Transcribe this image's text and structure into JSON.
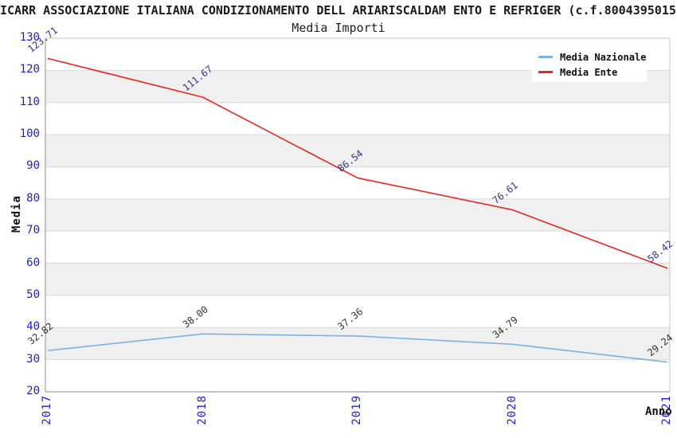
{
  "header": {
    "title": "ICARR ASSOCIAZIONE ITALIANA CONDIZIONAMENTO DELL ARIARISCALDAM ENTO E REFRIGER (c.f.80043950155",
    "subtitle": "Media Importi"
  },
  "chart_data": {
    "type": "line",
    "title": "Media Importi",
    "categories": [
      "2017",
      "2018",
      "2019",
      "2020",
      "2021"
    ],
    "series": [
      {
        "name": "Media Nazionale",
        "color": "#7eb1e3",
        "label_color": "#333333",
        "values": [
          32.82,
          38.0,
          37.36,
          34.79,
          29.24
        ]
      },
      {
        "name": "Media Ente",
        "color": "#e9261d",
        "label_color": "#333399",
        "values": [
          123.71,
          111.67,
          86.54,
          76.61,
          58.42
        ]
      }
    ],
    "xlabel": "Anno",
    "ylabel": "Media",
    "ylim": [
      20,
      130
    ],
    "ytick_step": 10,
    "grid": true,
    "legend_position": "top-right",
    "colors": {
      "band_gray": "#f0f0f0",
      "band_white": "#ffffff",
      "gridline": "#d9d9d9",
      "spine_dark": "#8c8c8c",
      "spine_light": "#c6c6c6",
      "tick_label": "#1c1cd8"
    }
  }
}
